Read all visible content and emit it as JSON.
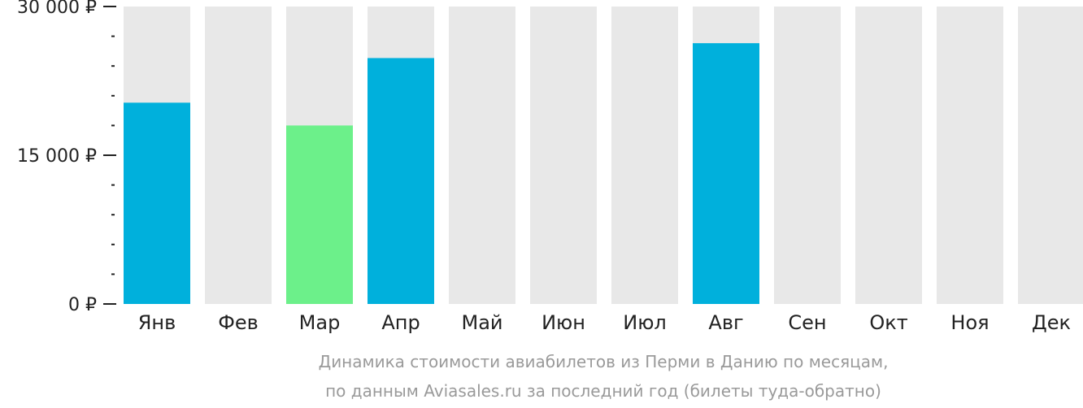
{
  "chart_data": {
    "type": "bar",
    "categories": [
      "Янв",
      "Фев",
      "Мар",
      "Апр",
      "Май",
      "Июн",
      "Июл",
      "Авг",
      "Сен",
      "Окт",
      "Ноя",
      "Дек"
    ],
    "values": [
      20300,
      null,
      18000,
      24800,
      null,
      null,
      null,
      26300,
      null,
      null,
      null,
      null
    ],
    "bar_colors": [
      "#00b0dc",
      null,
      "#6cf08a",
      "#00b0dc",
      null,
      null,
      null,
      "#00b0dc",
      null,
      null,
      null,
      null
    ],
    "background_color": "#e8e8e8",
    "ylim": [
      0,
      30000
    ],
    "yticks": [
      {
        "value": 0,
        "label": "0 ₽"
      },
      {
        "value": 15000,
        "label": "15 000 ₽"
      },
      {
        "value": 30000,
        "label": "30 000 ₽"
      }
    ],
    "minor_ticks": [
      3000,
      6000,
      9000,
      12000,
      18000,
      21000,
      24000,
      27000
    ],
    "caption_lines": [
      "Динамика стоимости авиабилетов из Перми в Данию по месяцам,",
      "по данным Aviasales.ru за последний год (билеты туда-обратно)"
    ],
    "grid": false
  }
}
